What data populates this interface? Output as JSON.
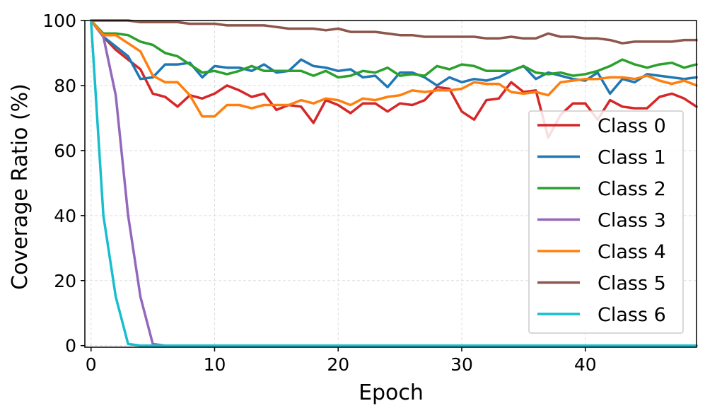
{
  "chart_data": {
    "type": "line",
    "title": "",
    "xlabel": "Epoch",
    "ylabel": "Coverage Ratio (%)",
    "xlim": [
      -0.5,
      49
    ],
    "ylim": [
      -0.5,
      100
    ],
    "xticks": [
      0,
      10,
      20,
      30,
      40
    ],
    "yticks": [
      0,
      20,
      40,
      60,
      80,
      100
    ],
    "grid": true,
    "legend_position": "right",
    "x": [
      0,
      1,
      2,
      3,
      4,
      5,
      6,
      7,
      8,
      9,
      10,
      11,
      12,
      13,
      14,
      15,
      16,
      17,
      18,
      19,
      20,
      21,
      22,
      23,
      24,
      25,
      26,
      27,
      28,
      29,
      30,
      31,
      32,
      33,
      34,
      35,
      36,
      37,
      38,
      39,
      40,
      41,
      42,
      43,
      44,
      45,
      46,
      47,
      48,
      49
    ],
    "series": [
      {
        "name": "Class 0",
        "color": "#d62728",
        "values": [
          100,
          95,
          91,
          88,
          85,
          77.5,
          76.5,
          73.5,
          77,
          76,
          77.5,
          80,
          78.5,
          76.5,
          77.5,
          72.5,
          74,
          73.5,
          68.5,
          75.5,
          74,
          71.5,
          74.5,
          74.5,
          72,
          74.5,
          74,
          75.5,
          79.5,
          79,
          72,
          69.5,
          75.5,
          76,
          81,
          78,
          78.5,
          64,
          71,
          74.5,
          74.5,
          69.5,
          75.5,
          73.5,
          73,
          73,
          76.5,
          77.5,
          76,
          73.5
        ]
      },
      {
        "name": "Class 1",
        "color": "#1f77b4",
        "values": [
          100,
          95,
          92,
          89,
          82,
          82.5,
          86.5,
          86.5,
          87,
          82.5,
          86,
          85.5,
          85.5,
          84.5,
          86.5,
          84,
          84.5,
          88,
          86,
          85.5,
          84.5,
          85,
          82.5,
          83,
          79.5,
          84,
          84,
          82.5,
          80,
          82.5,
          81,
          82,
          81.5,
          82.5,
          84.5,
          86,
          82,
          84,
          83,
          82,
          81.5,
          84,
          77.5,
          82,
          81,
          83.5,
          83,
          82.5,
          82,
          82.5
        ]
      },
      {
        "name": "Class 2",
        "color": "#2ca02c",
        "values": [
          100,
          96,
          96,
          95.5,
          93.5,
          92.5,
          90,
          89,
          86.5,
          84,
          84.5,
          83.5,
          84.5,
          86,
          84.5,
          84.5,
          84.5,
          84.5,
          83,
          84.5,
          82.5,
          83,
          84.5,
          84,
          85.5,
          83,
          83.5,
          83,
          86,
          85,
          86.5,
          86,
          84.5,
          84.5,
          84.5,
          86,
          84,
          83.5,
          84,
          83,
          83.5,
          84.5,
          86,
          88,
          86.5,
          85.5,
          86.5,
          87,
          85.5,
          86.5
        ]
      },
      {
        "name": "Class 3",
        "color": "#9467bd",
        "values": [
          100,
          95,
          77,
          40,
          15,
          0.5,
          0,
          0,
          0,
          0,
          0,
          0,
          0,
          0,
          0,
          0,
          0,
          0,
          0,
          0,
          0,
          0,
          0,
          0,
          0,
          0,
          0,
          0,
          0,
          0,
          0,
          0,
          0,
          0,
          0,
          0,
          0,
          0,
          0,
          0,
          0,
          0,
          0,
          0,
          0,
          0,
          0,
          0,
          0,
          0
        ]
      },
      {
        "name": "Class 4",
        "color": "#ff7f0e",
        "values": [
          100,
          95.5,
          95.5,
          93,
          90.5,
          83,
          81,
          81,
          77,
          70.5,
          70.5,
          74,
          74,
          73,
          74,
          74,
          74,
          75.5,
          74.5,
          76,
          75.5,
          74,
          76,
          75.5,
          76.5,
          77,
          78.5,
          78,
          78.5,
          78.5,
          79,
          81,
          80.5,
          80.5,
          78,
          77.5,
          78,
          77,
          81,
          81.5,
          82,
          82,
          82.5,
          82.5,
          82,
          83,
          81.5,
          80.5,
          81.5,
          80
        ]
      },
      {
        "name": "Class 5",
        "color": "#8c564b",
        "values": [
          100,
          100,
          100,
          100,
          99.5,
          99.5,
          99.5,
          99.5,
          99,
          99,
          99,
          98.5,
          98.5,
          98.5,
          98.5,
          98,
          97.5,
          97.5,
          97.5,
          97,
          97.5,
          96.5,
          96.5,
          96.5,
          96,
          95.5,
          95.5,
          95,
          95,
          95,
          95,
          95,
          94.5,
          94.5,
          95,
          94.5,
          94.5,
          96,
          95,
          95,
          94.5,
          94.5,
          94,
          93,
          93.5,
          93.5,
          93.5,
          93.5,
          94,
          94
        ]
      },
      {
        "name": "Class 6",
        "color": "#17becf",
        "values": [
          100,
          40,
          15,
          0.5,
          0,
          0,
          0,
          0,
          0,
          0,
          0,
          0,
          0,
          0,
          0,
          0,
          0,
          0,
          0,
          0,
          0,
          0,
          0,
          0,
          0,
          0,
          0,
          0,
          0,
          0,
          0,
          0,
          0,
          0,
          0,
          0,
          0,
          0,
          0,
          0,
          0,
          0,
          0,
          0,
          0,
          0,
          0,
          0,
          0,
          0
        ]
      }
    ]
  }
}
